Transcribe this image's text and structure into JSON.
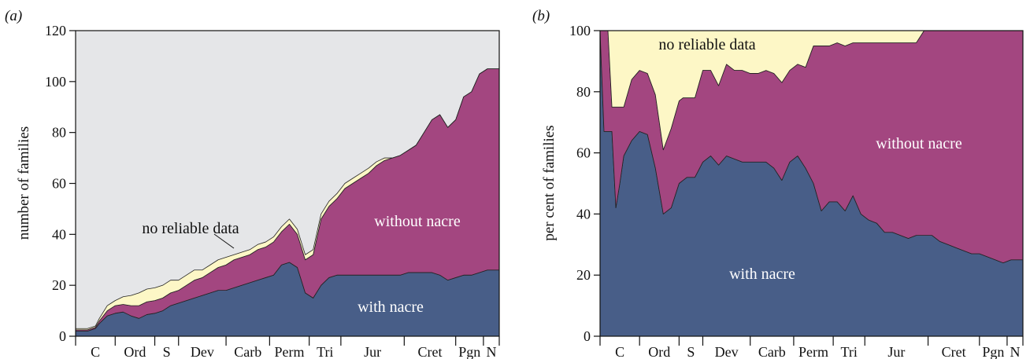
{
  "chart_data": [
    {
      "panel_label": "(a)",
      "type": "area",
      "stacked": true,
      "ylabel": "number of families",
      "xlabel": "",
      "ylim": [
        0,
        120
      ],
      "yticks": [
        0,
        20,
        40,
        60,
        80,
        100,
        120
      ],
      "background_color": "#e5e6e8",
      "periods": [
        {
          "label": "C",
          "start": 0,
          "end": 10
        },
        {
          "label": "Ord",
          "start": 10,
          "end": 20
        },
        {
          "label": "S",
          "start": 20,
          "end": 26
        },
        {
          "label": "Dev",
          "start": 26,
          "end": 38
        },
        {
          "label": "Carb",
          "start": 38,
          "end": 49
        },
        {
          "label": "Perm",
          "start": 49,
          "end": 59
        },
        {
          "label": "Tri",
          "start": 59,
          "end": 67
        },
        {
          "label": "Jur",
          "start": 67,
          "end": 83
        },
        {
          "label": "Cret",
          "start": 83,
          "end": 96
        },
        {
          "label": "Pgn",
          "start": 96,
          "end": 103
        },
        {
          "label": "N",
          "start": 103,
          "end": 107
        }
      ],
      "x": [
        0,
        3,
        5,
        6,
        8,
        9,
        10,
        12,
        14,
        16,
        18,
        20,
        22,
        24,
        26,
        28,
        30,
        32,
        34,
        36,
        38,
        40,
        42,
        44,
        46,
        48,
        50,
        52,
        54,
        55,
        56,
        57,
        58,
        60,
        62,
        64,
        66,
        68,
        70,
        72,
        74,
        76,
        78,
        80,
        82,
        84,
        86,
        88,
        90,
        92,
        94,
        96,
        98,
        100,
        102,
        104,
        107
      ],
      "series": [
        {
          "name": "with nacre",
          "color": "#485e88",
          "values": [
            2,
            2,
            3,
            5,
            8,
            8.5,
            9,
            9.5,
            8,
            7,
            8.5,
            9,
            10,
            12,
            13,
            14,
            15,
            16,
            17,
            18,
            18,
            19,
            20,
            21,
            22,
            23,
            24,
            28,
            29,
            28,
            27,
            22,
            17,
            15,
            20,
            23,
            24,
            24,
            24,
            24,
            24,
            24,
            24,
            24,
            24,
            25,
            25,
            25,
            25,
            24,
            22,
            23,
            24,
            24,
            25,
            26,
            26
          ]
        },
        {
          "name": "without nacre",
          "color": "#a34680",
          "values": [
            0.5,
            0.5,
            0.5,
            1,
            2,
            2.5,
            3,
            3,
            4,
            5,
            5,
            5,
            5,
            5,
            5,
            6,
            7,
            7,
            8,
            9,
            10,
            11,
            11,
            11,
            12,
            12,
            13,
            13,
            15,
            14,
            13,
            13,
            13,
            17,
            26,
            28,
            30,
            34,
            36,
            38,
            40,
            43,
            45,
            46,
            47,
            48,
            50,
            55,
            60,
            63,
            60,
            62,
            70,
            72,
            78,
            79,
            79
          ]
        },
        {
          "name": "no reliable data",
          "color": "#fdf7c6",
          "values": [
            0.5,
            0.5,
            0.5,
            1,
            2,
            2,
            2,
            3,
            4,
            5,
            5,
            5,
            5,
            5,
            4,
            4,
            4,
            3,
            3,
            3,
            3,
            2,
            2,
            2,
            2,
            2,
            2,
            2,
            2,
            2,
            2,
            2,
            2,
            2,
            2,
            2,
            2,
            2,
            2,
            2,
            2,
            1.5,
            1,
            0,
            0,
            0,
            0,
            0,
            0,
            0,
            0,
            0,
            0,
            0,
            0,
            0,
            0
          ]
        }
      ],
      "annotations": [
        {
          "text": "no reliable data",
          "color": "#111111"
        },
        {
          "text": "without nacre",
          "color": "#ffffff"
        },
        {
          "text": "with nacre",
          "color": "#ffffff"
        }
      ]
    },
    {
      "panel_label": "(b)",
      "type": "area",
      "stacked": true,
      "ylabel": "per cent of families",
      "xlabel": "",
      "ylim": [
        0,
        100
      ],
      "yticks": [
        0,
        20,
        40,
        60,
        80,
        100
      ],
      "periods": [
        {
          "label": "C",
          "start": 0,
          "end": 10
        },
        {
          "label": "Ord",
          "start": 10,
          "end": 20
        },
        {
          "label": "S",
          "start": 20,
          "end": 26
        },
        {
          "label": "Dev",
          "start": 26,
          "end": 38
        },
        {
          "label": "Carb",
          "start": 38,
          "end": 49
        },
        {
          "label": "Perm",
          "start": 49,
          "end": 59
        },
        {
          "label": "Tri",
          "start": 59,
          "end": 67
        },
        {
          "label": "Jur",
          "start": 67,
          "end": 83
        },
        {
          "label": "Cret",
          "start": 83,
          "end": 96
        },
        {
          "label": "Pgn",
          "start": 96,
          "end": 103
        },
        {
          "label": "N",
          "start": 103,
          "end": 107
        }
      ],
      "x": [
        0,
        1,
        2,
        3,
        4,
        5,
        6,
        8,
        10,
        12,
        14,
        16,
        18,
        20,
        21,
        22,
        24,
        26,
        28,
        30,
        32,
        34,
        36,
        38,
        40,
        42,
        44,
        46,
        48,
        50,
        52,
        54,
        56,
        58,
        60,
        62,
        64,
        66,
        68,
        70,
        72,
        74,
        76,
        78,
        80,
        82,
        84,
        86,
        88,
        90,
        92,
        94,
        96,
        98,
        100,
        102,
        104,
        107
      ],
      "series": [
        {
          "name": "with nacre",
          "color": "#485e88",
          "values": [
            100,
            67,
            67,
            67,
            42,
            50,
            59,
            64,
            67,
            66,
            55,
            40,
            42,
            50,
            51,
            52,
            52,
            57,
            59,
            56,
            59,
            58,
            57,
            57,
            57,
            57,
            55,
            51,
            57,
            59,
            55,
            50,
            41,
            44,
            44,
            41,
            46,
            40,
            38,
            37,
            34,
            34,
            33,
            32,
            33,
            33,
            33,
            31,
            30,
            29,
            28,
            27,
            27,
            26,
            25,
            24,
            25,
            25
          ]
        },
        {
          "name": "without nacre",
          "color": "#a34680",
          "values": [
            0,
            33,
            33,
            8,
            33,
            25,
            16,
            20,
            20,
            20,
            24,
            21,
            26,
            27,
            27,
            26,
            26,
            30,
            28,
            26,
            30,
            29,
            30,
            29,
            29,
            30,
            31,
            32,
            30,
            30,
            33,
            45,
            54,
            51,
            52,
            54,
            50,
            56,
            58,
            59,
            62,
            62,
            63,
            64,
            63,
            67,
            67,
            69,
            70,
            71,
            72,
            73,
            73,
            74,
            75,
            76,
            75,
            75
          ]
        },
        {
          "name": "no reliable data",
          "color": "#fdf7c6",
          "values": [
            0,
            0,
            0,
            25,
            25,
            25,
            25,
            16,
            13,
            14,
            21,
            39,
            32,
            23,
            22,
            22,
            22,
            13,
            13,
            18,
            11,
            13,
            13,
            14,
            14,
            13,
            14,
            17,
            13,
            11,
            12,
            5,
            5,
            5,
            4,
            5,
            4,
            4,
            4,
            4,
            4,
            4,
            4,
            4,
            4,
            0,
            0,
            0,
            0,
            0,
            0,
            0,
            0,
            0,
            0,
            0,
            0,
            0
          ]
        }
      ],
      "annotations": [
        {
          "text": "no reliable data",
          "color": "#111111"
        },
        {
          "text": "without nacre",
          "color": "#ffffff"
        },
        {
          "text": "with nacre",
          "color": "#ffffff"
        }
      ]
    }
  ]
}
